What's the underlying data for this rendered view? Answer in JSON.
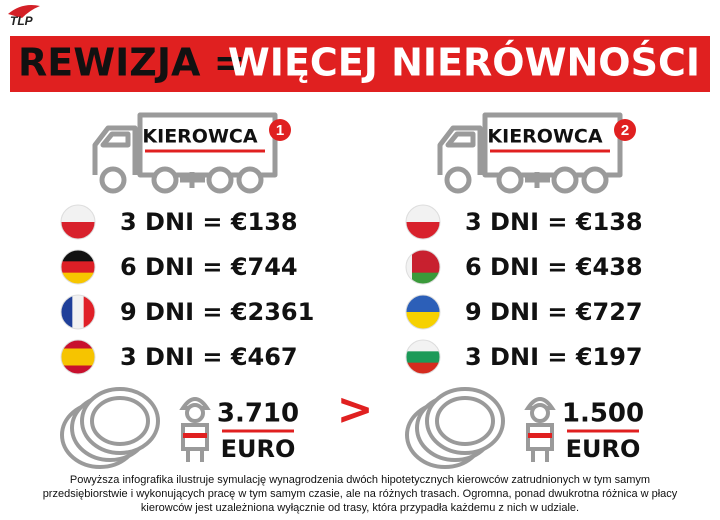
{
  "logo": "TLP",
  "title": {
    "left": "REWIZJA =",
    "right": "WIĘCEJ NIERÓWNOŚCI"
  },
  "drivers": [
    {
      "label": "KIEROWCA",
      "number": "1",
      "rows": [
        "3 DNI = €138",
        "6 DNI = €744",
        "9 DNI = €2361",
        "3 DNI = €467"
      ],
      "total": "3.710",
      "currency": "EURO"
    },
    {
      "label": "KIEROWCA",
      "number": "2",
      "rows": [
        "3 DNI = €138",
        "6 DNI = €438",
        "9 DNI = €727",
        "3 DNI = €197"
      ],
      "total": "1.500",
      "currency": "EURO"
    }
  ],
  "comparison": ">",
  "footer": [
    "Powyższa infografika ilustruje symulację wynagrodzenia dwóch hipotetycznych kierowców zatrudnionych w tym samym",
    "przedsiębiorstwie i wykonujących pracę w tym samym czasie, ale na różnych trasach. Ogromna, ponad dwukrotna różnica w płacy",
    "kierowców jest uzależniona wyłącznie od trasy, która przypadła każdemu z nich w udziale."
  ]
}
